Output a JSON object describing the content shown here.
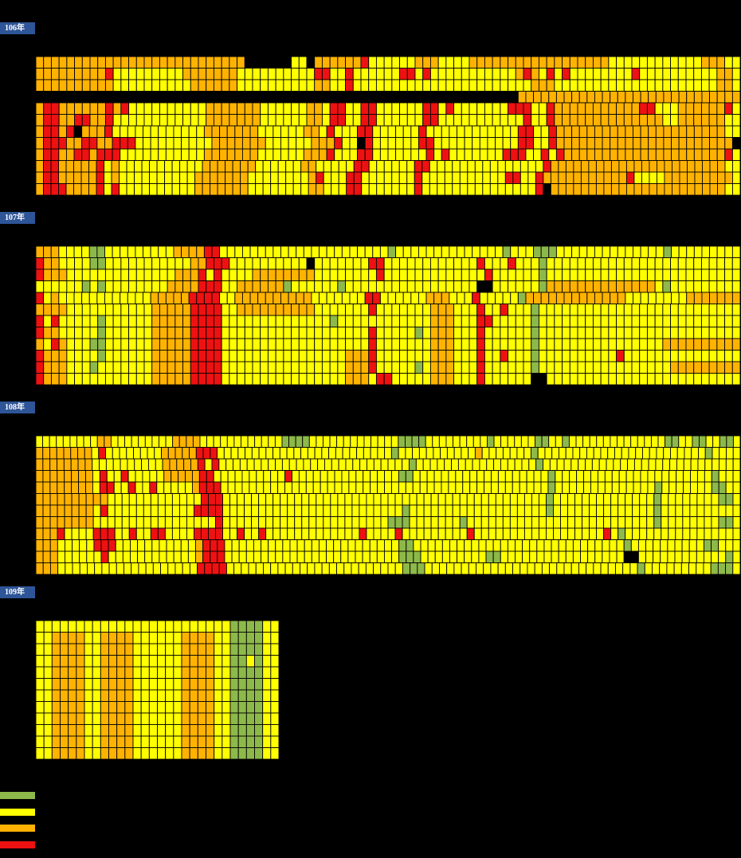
{
  "chart_data": {
    "type": "heatmap",
    "colors": {
      "green": "#8db94a",
      "yellow": "#ffff00",
      "orange": "#ffb300",
      "red": "#ee1111",
      "black": "#000000",
      "grid": "#000000",
      "label_bg": "#2e5597"
    },
    "legend": [
      {
        "level": "green",
        "color": "#8db94a"
      },
      {
        "level": "yellow",
        "color": "#ffff00"
      },
      {
        "level": "orange",
        "color": "#ffb300"
      },
      {
        "level": "red",
        "color": "#ee1111"
      }
    ],
    "blocks": [
      {
        "label": "106年",
        "rows": [
          "OOOOOOOOOOOOOOOOOOOOOOOOOOO......YY.OOOOOORYYYYYYOOOYYYYOOOOOOOOOOOOOOOOOOYYYYYYYYYYYYOOOYY",
          "OOOOOOOOORYYYYYYYYYOOOOOOOYYYYYYYYYYRRYYRYYYYYYRRYRYYYYYYYYYYYOROYRYRYYYYYYYYRYYYYYYYYYYOOY",
          "OOOOOOOOOOYYYYYYYYYYOOOOOOYYYYYYYYYYOOYYRYYYYYYYYYYYYYYYYYYYYYYYOOOYYYYYYYYYYYYYYYYYYYYYOOY",
          "...............................................................OOOOOOOOOOOOOOOOOOOOOOOOOOOOO",
          "ORROOOOOORORYYYYYYYYYYOOOOOOOYYYYYYOOYRRYYRRYYYYYYRRYRYYYYYYYRRRYYROOOOOOOOOOORRYYYOOOOOORY",
          "ORROORROORYYYYYYYYYYYYOOOOOOOYYYYYYOOYRRYYRRYYYYYYRRYYYYYYYYYYYRYYROOOOOOOOOOOOOOYYOOOOOOYY",
          "ORROR.OOORYYYYYYYYYYYYOOOOOOOYYYYYYOOYRYYYRRYYYYYYRYYYYYYYYYYYYRRYYROOOOOOOOOOOOOOOOOOOOOOYY",
          "ORRROORROORRRYYYYYYYYYYOOOOOOOYYYYYYOOORYY.RYYYYYYRRYYYYYYYYYYYRRYYROOOOOOOOOOOOOOOOOOOOOOO.",
          "ORROORRORRRYYYYYYYYYYYOOOOOOOYYYYYYOOORYYYRRYYYYYYYRYRYYYYYYYRRRYYRYROOOOOOOOOOOOOOOOOOOOORY",
          "ORROOOOORYOYYYYYYYYYYYOOOOOOOYYYYYYOOYYYYYRRYYYYYYRRYYYYYYYYYYYYYYYROOOOOOOOOOOOOOOOOOOOOOOYY",
          "ORROOOOORYOYYYYYYYYYYOOOOOOOYYYYYYYYORYYYRRYYYYYYYRYYYYYYYYYYYRRYYROOOOOOOOOOORYYYYOOOOOOOOOY",
          "ORRROOOORYRYYYYYYYYYYOOOOOOOYYYYYYYYOOYYYRRYYYYYYYRYYYYYYYYYYYYYYYR.OOOOOOOOOOOOOOOOOOOOOOOYY"
        ]
      },
      {
        "label": "107年",
        "rows": [
          "OOOYYYYGGYYYYYYYYYOOOORRYYYYYYYYYYYYYYYYYYYYYYGYYYYYYYYYYYYYYGYYYGGGYYYYYYYYYYYYYYGYYYYYYYYY",
          "ROOYYYYGGYYYYYYYYYYYOORRRYYYYYYYYYY.YYYYYYYRRYYYYYYYYYYYYRYYYRYYYGYYYYYYYYYYYYYYYYYYYYYYYYY",
          "ROOOYYYYYYYYYYYYYYOOORYRYYYYOOOOOOOOYYYYYYYYRYYYYYYYYYYYYYRYYYYYYGYYYYYYYYYYYYYYYYYYYYYYYYY",
          "YYYYYYGYGYYYYYYYYOOOORRRYYOOOOOOGYYYYYYGYYYYYYYYYYYYYYYYY..YYYYYYGOOOOOOOOOOOOOOYGYYYYYYYYY",
          "RYOYYYYYYYYYYYYOOOOORRRRYYOOOOOOOOOOYYYYYYYRRYYYYYYOOOYYYRYYYYYGOOOOOOOOOOOOOYYYYYYYYOOOOOOO",
          "OOOOYYYYYYYYYYYOOOOORRRRYYOOOOOOOOOOYYYYYYYRYYYYYYYOOOYYYRYYRYYYGYYYYYYYYYYYYYYYYYYYYYYYYYY",
          "RYRYYYYYGYYYYYYOOOOORRRRYYYYYYYYYYYYYYGYYYYYYYYYYYYOOOYYYRRYYYYYGYYYYYYYYYYYYYYYYYYYYYYYYYY",
          "ROOYYYYYGYYYYYYOOOOORRRRYYYYYYYYYYYYYYYYYYYRYYYYYGYOOOYYYRYYYYYYGYYYYYYYYYYYYYYYYYYYYYYYYYY",
          "OYROYYYGGYYYYYYOOOOORRRRYYYYYYYYYYYYYYYYYYYRYYYYYYYOOOYYYRYYYYYYGYYYYYYYYYYYYYYYYOOOOOOOOOO",
          "ROOOYYYYGYYYYYYOOOOORRRRYYYYYYYYYYYYYYYYOOORYYYYYYYOOOYYYRYYRYYYGYYYYYYYYYYRYYYYYYYYYYYYYYY",
          "ROOOYYYGYYYYYYYOOOOORRRRYYYYYYYYYYYYYYYYOOORYYYYYGYOOOYYYRYYYYYYGYYYYYYYYYYYYYYYYYOOOOOOOOO",
          "ROOOYYYYYYYYYYYOOOOORRRRYYYYYYYYYYYYYYYYOOOYRRYYYYYOOOYYYRYYYYYY..YYYYYYYYYYYYYYYYYYYYYYYYY"
        ]
      },
      {
        "label": "108年",
        "rows": [
          "YYYYYYYYYOOYYYYYYYYYOOOOYYYYYYYYYYYYGGGGYYYYYYYYYYYYYGGGGYYYYYYYYYGYYYYYYGGYYGYYYYYYYYYYYYYYGGYYGGYYGGY",
          "OOOOOOOOYRYYYYYYYYOOOOORRRYYYYYYYYYYYYYYYYYYYYYYYYYGYYYYYYYYYYYOYYYYYYYGYYYYYYYYYYYYYYYYYYYYYYYYGYYYY",
          "OOOOOOOOYYYYYYYYYYOOOOORYRYYYYYYYYYYYYYYYYYYYYYYYYYYYGYYYYYYYYYYYYYYYYYGYYYYYYYYYYYYYYYYYYYYYYYYYYYY",
          "OOOOOOOOYRYYRYYYYYOOOOORRYYYYYYYYYYRYYYYYYYYYYYYYYYGGYYYYYYYYYYYYYYYYYYYGYYYYYYYYYYYYYYYYYYYYYYGYYY",
          "OOOOOOOOYRRYYRYYRYYYYYORRRYYYYYYYYYYYYYYYYYYYYYYYYYYYYYYYYYYYYYYYYYYYYYYGYYYYYYYYYYYYYYGYYYYYYYGGYY",
          "OOOOOOOOOOYYYYYYYYYYYYYRRRYYYYYYYYYYYYYYYYYYYYYYYYYYYYYYYYYYYYYYYYYYYYYGYYYYYYYYYYYYYYGYYYYYYYYGGY",
          "OOOOOOOOYRYYYYYYYYYYYYRRRRYYYYYYYYYYYYYYYYYYYYYYYYYGYYYYYYYYYYYYYYYYYYYGYYYYYYYYYYYYYYGYYYYYYYYYYY",
          "OOOOOOOOYYYYYYYYYYYYYYYYYRYYYYYYYYYYYYYYYYYYYYYYYGGGYYYYYYYGYYYYYYYYYYYYYYYYYYYYYYYYYYGYYYYYYYYGGY",
          "OOORYYYYRRRYYRYYRRYYYYRRRRYYRYYRYYYYYYYYYYYYYRYYYYRYYYYYYYYYRYYYYYYYYYYYYYYYYYYRYGYYYYYYYYYYYYYYYY",
          "OOOYYYYYRRRYYYYYYYYYYYORRRYYYYYYYYYYYYYYYYYYYYYYYYGGYYYYYYYYYYYYYYYYYYYYYYYYYYYYYGYYYYYYYYYYGGYYY",
          "OOOYYYYYYRYYYYYYYYYYYYORRRYYYYYYYYYYYYYYYYYYYYYYYYGGGYYYYYYYYYGGYYYYYYYYYYYYYYYYY..YYYYYYYYYYYYGY",
          "OOOYYYYYYYYYYYYYYYYYYYRRRRYYYYYYYYYYYYYYYYYYYYYYYYGGGYYYYYYYYYYYYYYYYYYYYYYYYYYYYYGYYYYYYYYYGGGY"
        ]
      },
      {
        "label": "109年",
        "rows": [
          "YYYYYYYYYYYYYYYYYYYYYYYYGGGGYY",
          "YYOOOOYYOOOOYYYYYYOOOOYYGGGGYY",
          "YYOOOOYYOOOOYYYYYYOOOOYYGGGGYY",
          "YYOOOOYYOOOOYYYYYYOOOOYYGGYGYY",
          "YYOOOOYYOOOOYYYYYYOOOOYYGGGGYY",
          "YYOOOOYYOOOOYYYYYYOOOOYYGGGGYY",
          "YYOOOOYYOOOOYYYYYYOOOOYYGGGGYY",
          "YYOOOOYYOOOOYYYYYYOOOOYYGGGGYY",
          "YYOOOOYYOOOOYYYYYYOOOOYYGGGGYY",
          "YYOOOOYYOOOOYYYYYYOOOOYYGGGGYY",
          "YYOOOOYYOOOOYYYYYYOOOOYYGGGGYY",
          "YYOOOOYYOOOOYYYYYYOOOOYYGGGGYY"
        ]
      }
    ]
  }
}
